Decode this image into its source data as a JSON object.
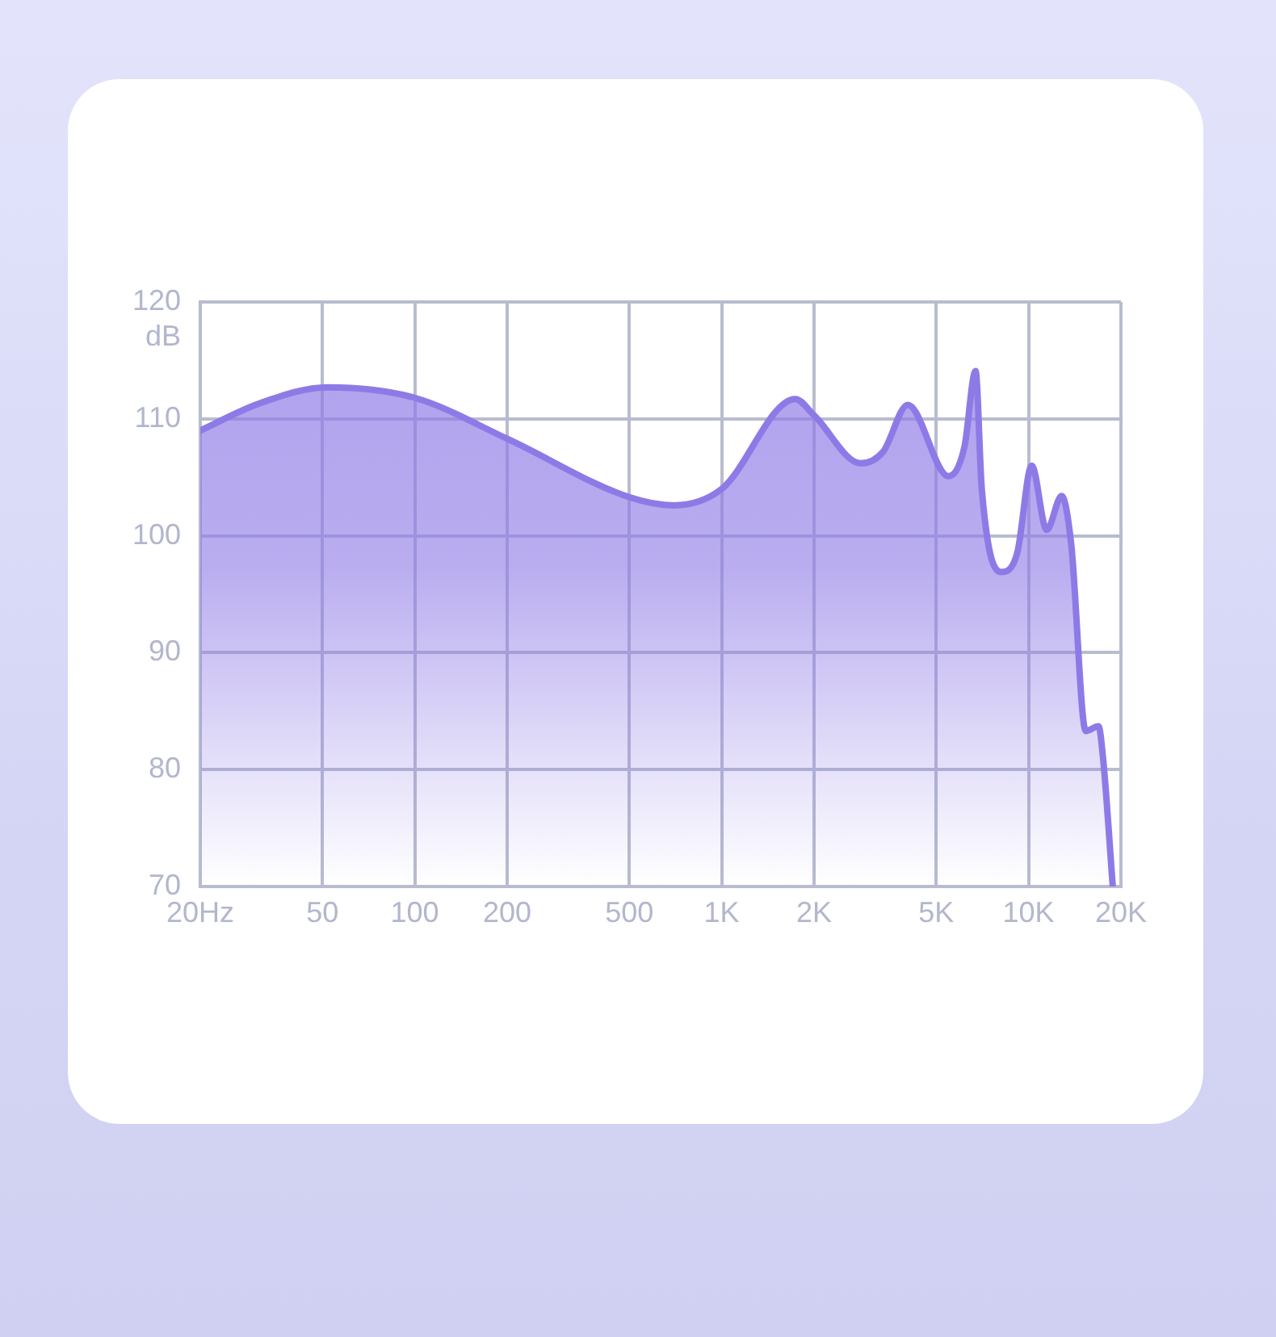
{
  "chart_data": {
    "type": "area",
    "ylabel": "dB",
    "x": [
      20,
      31,
      52,
      100,
      200,
      500,
      698,
      1000,
      1736,
      2000,
      2840,
      3360,
      4040,
      5480,
      6180,
      6720,
      7040,
      8140,
      9180,
      10240,
      11460,
      12820,
      13770,
      15360,
      16900,
      17500,
      18800
    ],
    "series": [
      {
        "color": "#8e7ae6",
        "values": [
          109.0,
          111.3,
          112.7,
          111.8,
          108.3,
          103.3,
          102.6,
          104.0,
          111.7,
          110.3,
          106.2,
          107.2,
          111.2,
          105.1,
          107.6,
          114.1,
          104.0,
          96.9,
          98.5,
          106.0,
          100.5,
          103.4,
          99.3,
          83.3,
          83.7,
          80.9,
          70.1
        ]
      }
    ],
    "log": "x",
    "xlim": [
      20,
      20000
    ],
    "xticks": [
      {
        "value": 20,
        "label": "20Hz"
      },
      50,
      100,
      200,
      500,
      {
        "value": 1000,
        "label": "1K"
      },
      {
        "value": 2000,
        "label": "2K"
      },
      {
        "value": 5000,
        "label": "5K"
      },
      {
        "value": 10000,
        "label": "10K"
      },
      {
        "value": 20000,
        "label": "20K"
      }
    ],
    "ylim": [
      70,
      120
    ],
    "yticks": [
      70,
      80,
      90,
      100,
      110,
      120
    ],
    "grid": true,
    "legend": false,
    "marker": "none",
    "line_style": "solid"
  }
}
